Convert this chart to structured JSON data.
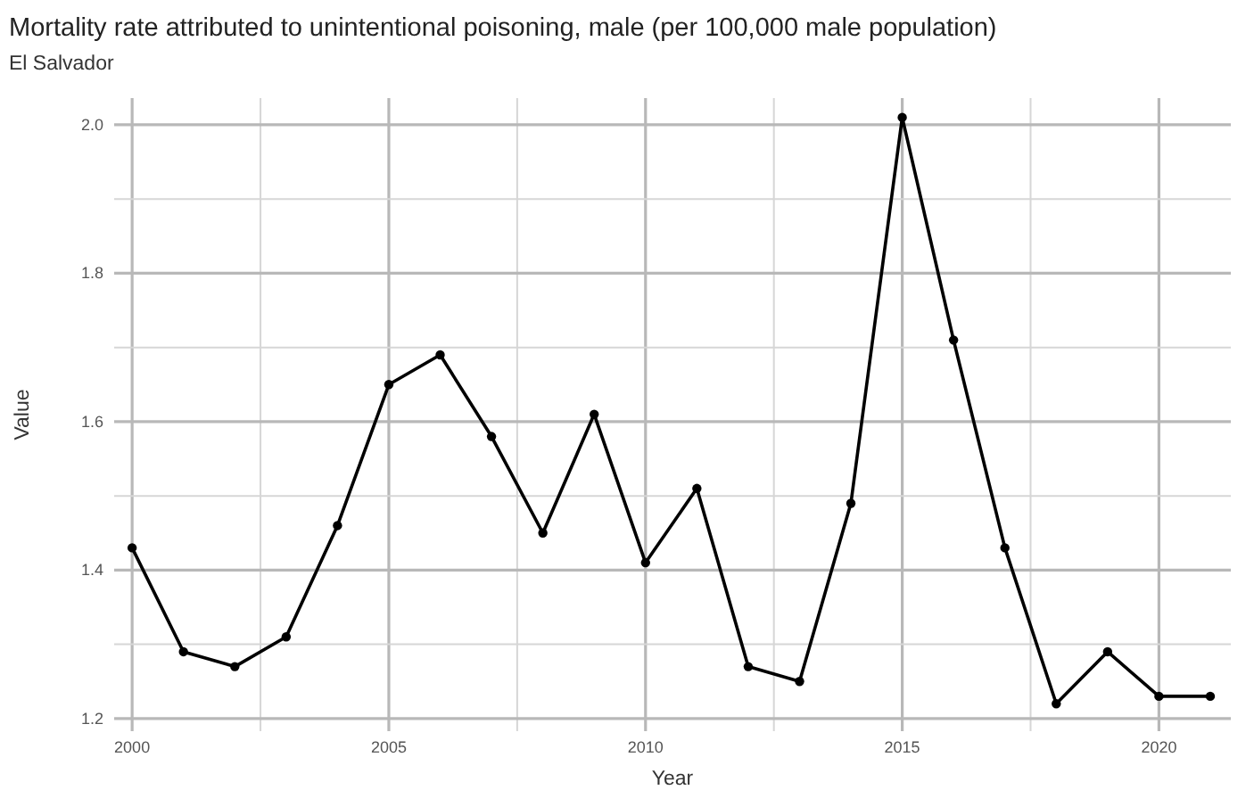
{
  "chart_data": {
    "type": "line",
    "title": "Mortality rate attributed to unintentional poisoning, male (per 100,000 male population)",
    "subtitle": "El Salvador",
    "xlabel": "Year",
    "ylabel": "Value",
    "x": [
      2000,
      2001,
      2002,
      2003,
      2004,
      2005,
      2006,
      2007,
      2008,
      2009,
      2010,
      2011,
      2012,
      2013,
      2014,
      2015,
      2016,
      2017,
      2018,
      2019,
      2020,
      2021
    ],
    "series": [
      {
        "color": "#000000",
        "values": [
          1.43,
          1.29,
          1.27,
          1.31,
          1.46,
          1.65,
          1.69,
          1.58,
          1.45,
          1.61,
          1.41,
          1.51,
          1.27,
          1.25,
          1.49,
          2.01,
          1.71,
          1.43,
          1.22,
          1.29,
          1.23,
          1.23
        ]
      }
    ],
    "xlim": [
      1999.65,
      2021.4
    ],
    "ylim": [
      1.183,
      2.036
    ],
    "xticks": [
      2000,
      {
        "value": 2002.5,
        "label": null
      },
      2005,
      {
        "value": 2007.5,
        "label": null
      },
      2010,
      {
        "value": 2012.5,
        "label": null
      },
      2015,
      {
        "value": 2017.5,
        "label": null
      },
      2020
    ],
    "yticks": [
      {
        "value": 1.2,
        "label": "1.2"
      },
      {
        "value": 1.3,
        "label": null
      },
      {
        "value": 1.4,
        "label": "1.4"
      },
      {
        "value": 1.5,
        "label": null
      },
      {
        "value": 1.6,
        "label": "1.6"
      },
      {
        "value": 1.7,
        "label": null
      },
      {
        "value": 1.8,
        "label": "1.8"
      },
      {
        "value": 1.9,
        "label": null
      },
      {
        "value": 2.0,
        "label": "2.0"
      }
    ],
    "grid": true,
    "marker": "circle",
    "line_style": "solid"
  }
}
